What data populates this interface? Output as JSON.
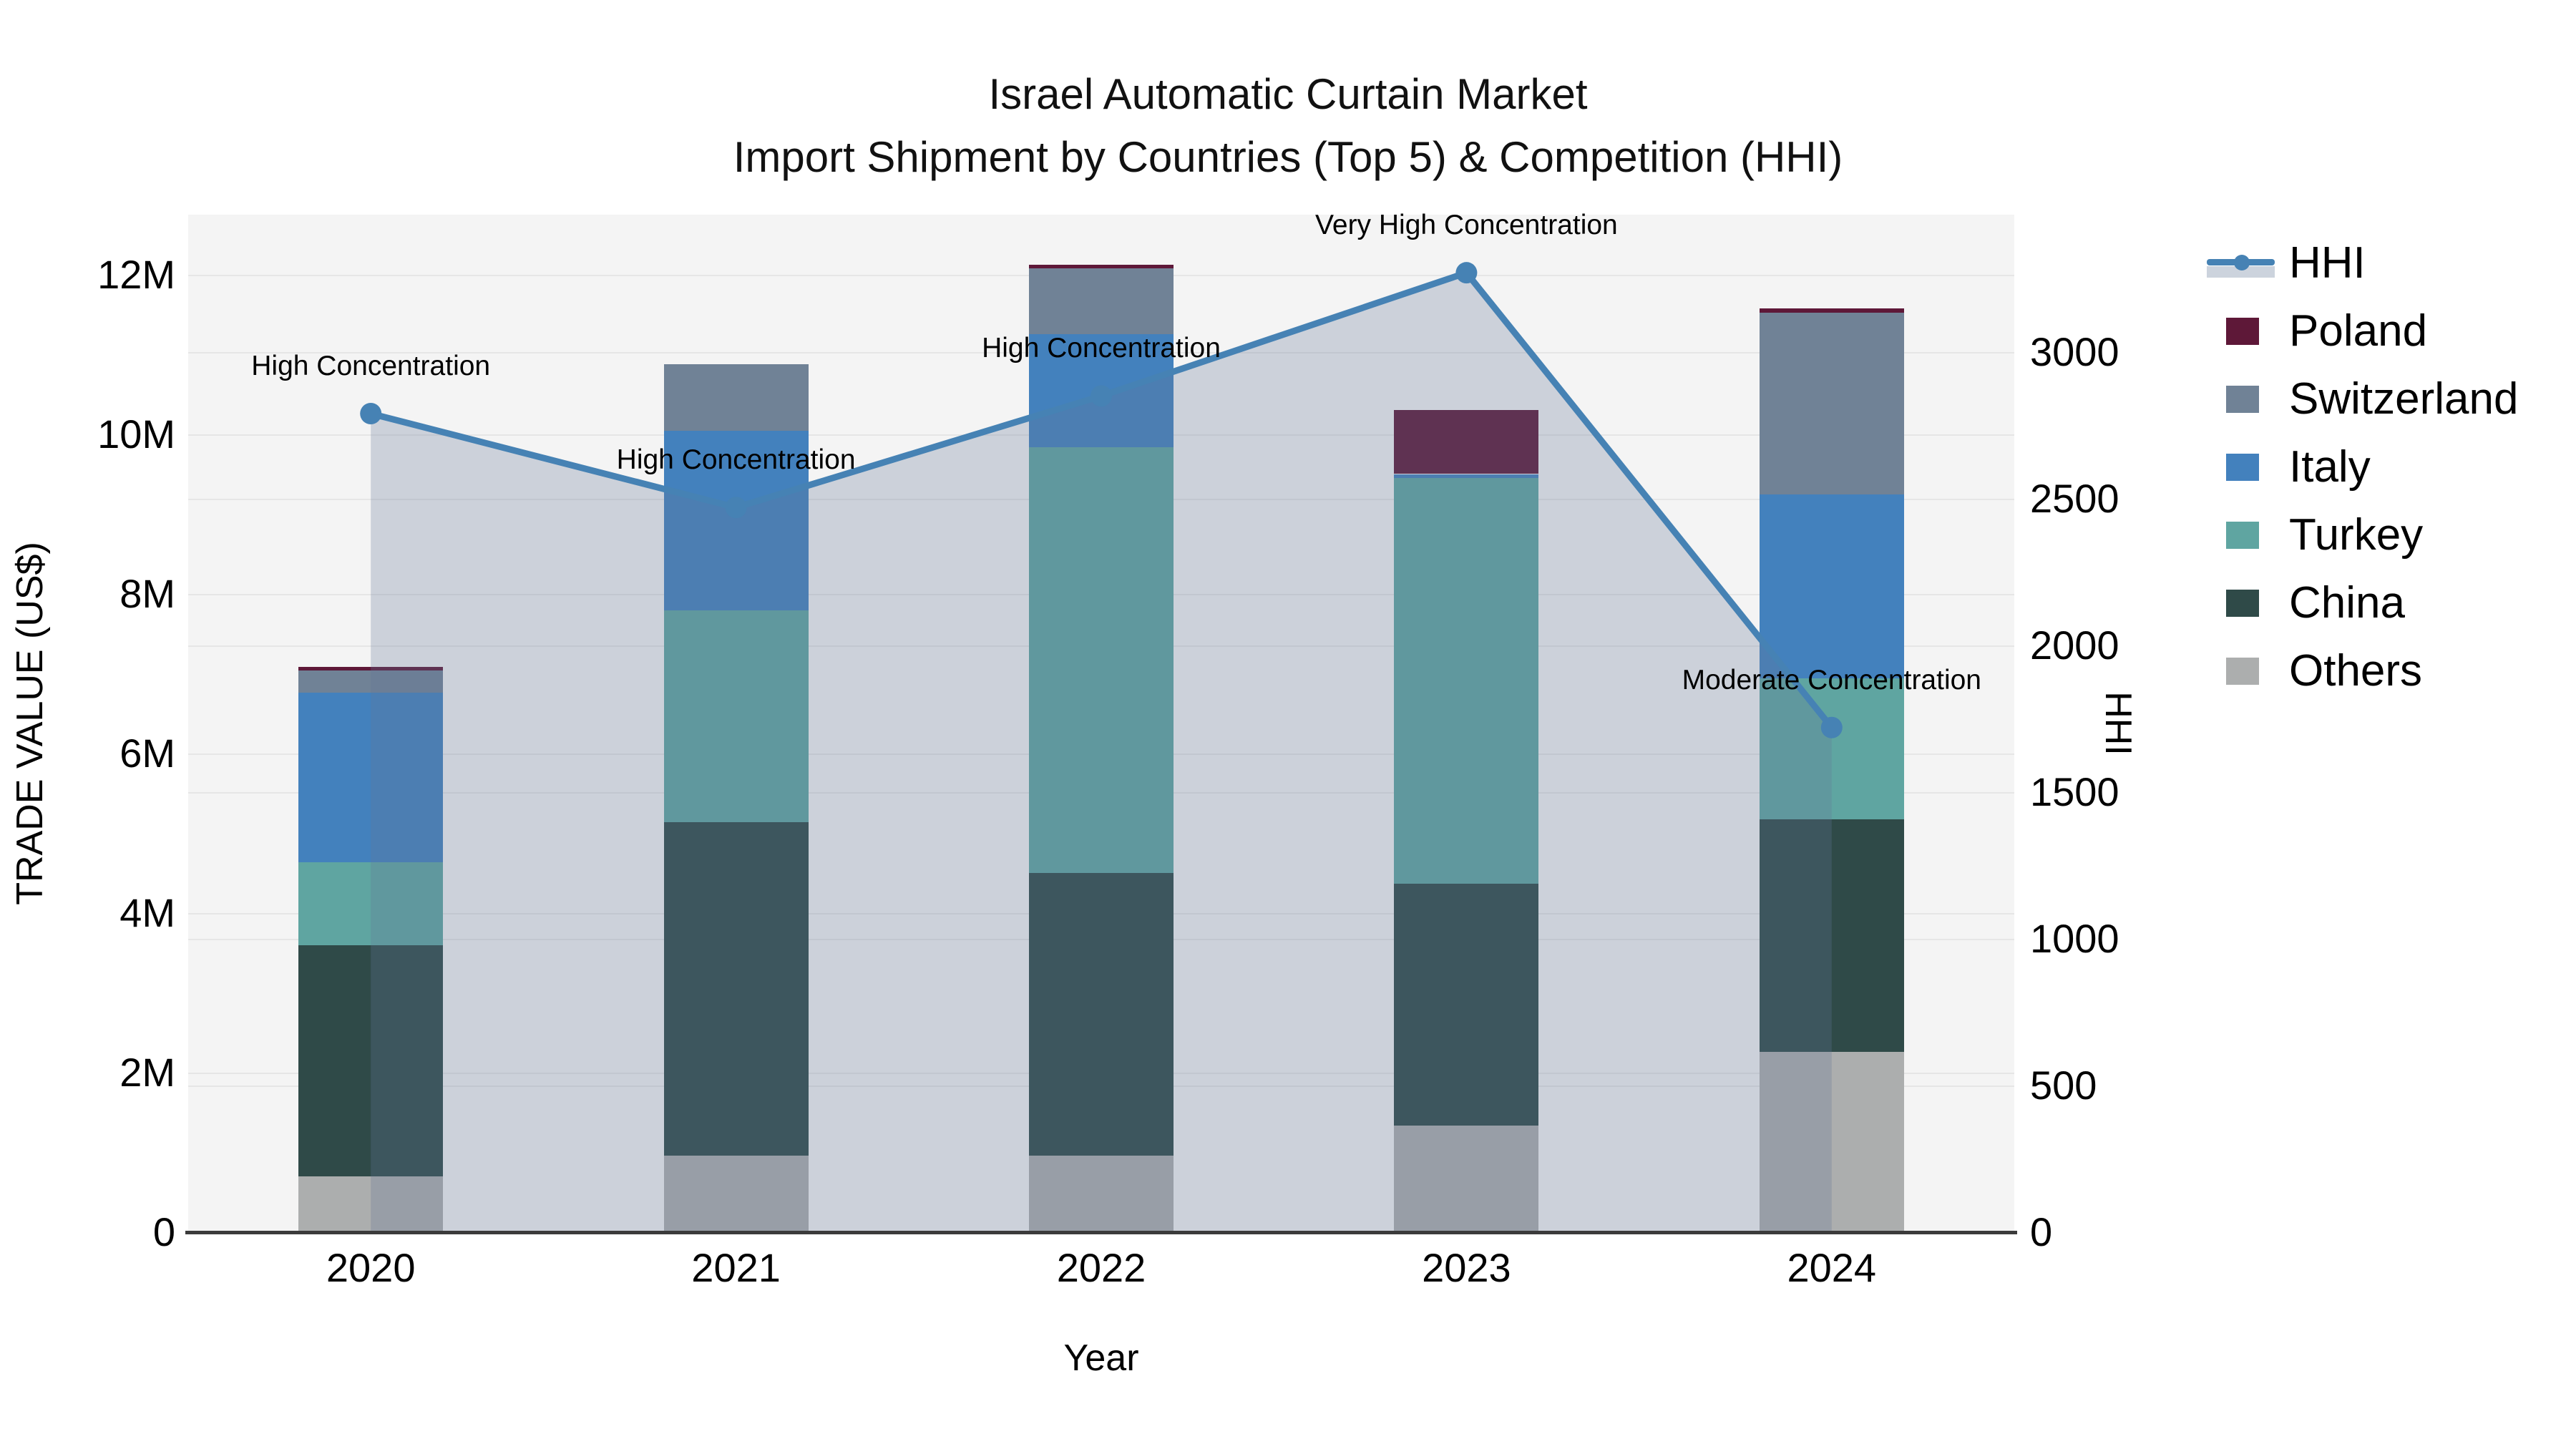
{
  "title": {
    "line1": "Israel Automatic Curtain Market",
    "line2": "Import Shipment by Countries (Top 5) & Competition (HHI)"
  },
  "axes": {
    "x": {
      "label": "Year",
      "ticks": [
        "2020",
        "2021",
        "2022",
        "2023",
        "2024"
      ]
    },
    "y_left": {
      "label": "TRADE VALUE (US$)",
      "ticks": [
        "0",
        "2M",
        "4M",
        "6M",
        "8M",
        "10M",
        "12M"
      ],
      "tick_values": [
        0,
        2,
        4,
        6,
        8,
        10,
        12
      ],
      "max": 12.75
    },
    "y_right": {
      "label": "HHI",
      "ticks": [
        "0",
        "500",
        "1000",
        "1500",
        "2000",
        "2500",
        "3000"
      ],
      "tick_values": [
        0,
        500,
        1000,
        1500,
        2000,
        2500,
        3000
      ],
      "max": 3468
    }
  },
  "legend": [
    {
      "label": "HHI",
      "type": "line",
      "color": "#4682b4",
      "band_color": "#ccd3dd"
    },
    {
      "label": "Poland",
      "type": "patch",
      "color": "#5e1838"
    },
    {
      "label": "Switzerland",
      "type": "patch",
      "color": "#708296"
    },
    {
      "label": "Italy",
      "type": "patch",
      "color": "#4381bd"
    },
    {
      "label": "Turkey",
      "type": "patch",
      "color": "#5fa5a1"
    },
    {
      "label": "China",
      "type": "patch",
      "color": "#2f4a48"
    },
    {
      "label": "Others",
      "type": "patch",
      "color": "#acaeae"
    }
  ],
  "chart_data": {
    "type": "combo: stacked bar (trade value, US$ millions) + line with area (HHI)",
    "categories": [
      "2020",
      "2021",
      "2022",
      "2023",
      "2024"
    ],
    "bar_unit": "million US$",
    "series": [
      {
        "name": "Others",
        "color": "#acaeae",
        "values": [
          0.7,
          0.96,
          0.96,
          1.34,
          2.26
        ]
      },
      {
        "name": "China",
        "color": "#2f4a48",
        "values": [
          2.9,
          4.18,
          3.54,
          3.03,
          2.91
        ]
      },
      {
        "name": "Turkey",
        "color": "#5fa5a1",
        "values": [
          1.04,
          2.65,
          5.34,
          5.08,
          1.77
        ]
      },
      {
        "name": "Italy",
        "color": "#4381bd",
        "values": [
          2.12,
          2.25,
          1.41,
          0.05,
          2.3
        ]
      },
      {
        "name": "Switzerland",
        "color": "#708296",
        "values": [
          0.28,
          0.84,
          0.83,
          0.0,
          2.28
        ]
      },
      {
        "name": "Poland",
        "color": "#5e1838",
        "values": [
          0.04,
          0.0,
          0.04,
          0.8,
          0.06
        ]
      }
    ],
    "bar_totals": [
      7.08,
      10.88,
      12.12,
      10.3,
      11.58
    ],
    "line": {
      "name": "HHI",
      "color": "#4682b4",
      "area_fill": "rgba(100,120,150,0.28)",
      "values": [
        2790,
        2470,
        2850,
        3270,
        1720
      ]
    },
    "annotations": [
      {
        "category": "2020",
        "text": "High Concentration"
      },
      {
        "category": "2021",
        "text": "High Concentration"
      },
      {
        "category": "2022",
        "text": "High Concentration"
      },
      {
        "category": "2023",
        "text": "Very High Concentration"
      },
      {
        "category": "2024",
        "text": "Moderate Concentration"
      }
    ],
    "ylim_left": [
      0,
      12.75
    ],
    "ylim_right": [
      0,
      3468
    ],
    "grid": true,
    "legend_position": "right"
  }
}
